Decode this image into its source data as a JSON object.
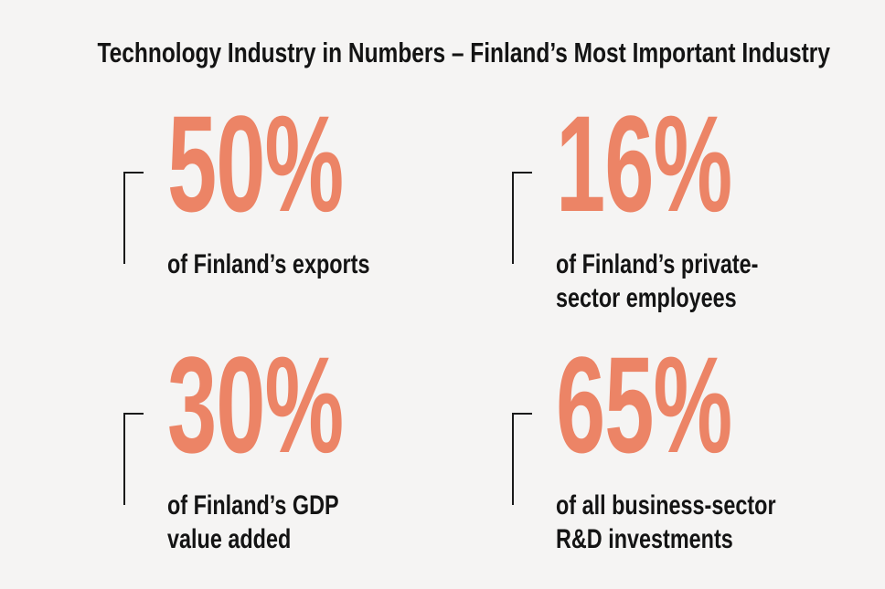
{
  "theme": {
    "background": "#f5f4f3",
    "accent": "#ec8466",
    "text": "#141414",
    "bracket": "#1a1a1a"
  },
  "header": {
    "title": "Technology Industry in Numbers – Finland’s Most Important Industry"
  },
  "stats": [
    {
      "value": "50%",
      "lines": [
        "of Finland’s exports"
      ]
    },
    {
      "value": "16%",
      "lines": [
        "of Finland’s private-",
        "sector employees"
      ]
    },
    {
      "value": "30%",
      "lines": [
        "of Finland’s GDP",
        "value added"
      ]
    },
    {
      "value": "65%",
      "lines": [
        "of all business-sector",
        "R&D investments"
      ]
    }
  ],
  "chart_data": {
    "type": "table",
    "title": "Technology Industry in Numbers – Finland’s Most Important Industry",
    "categories": [
      "of Finland’s exports",
      "of Finland’s private-sector employees",
      "of Finland’s GDP value added",
      "of all business-sector R&D investments"
    ],
    "values": [
      50,
      16,
      30,
      65
    ],
    "unit": "%"
  }
}
